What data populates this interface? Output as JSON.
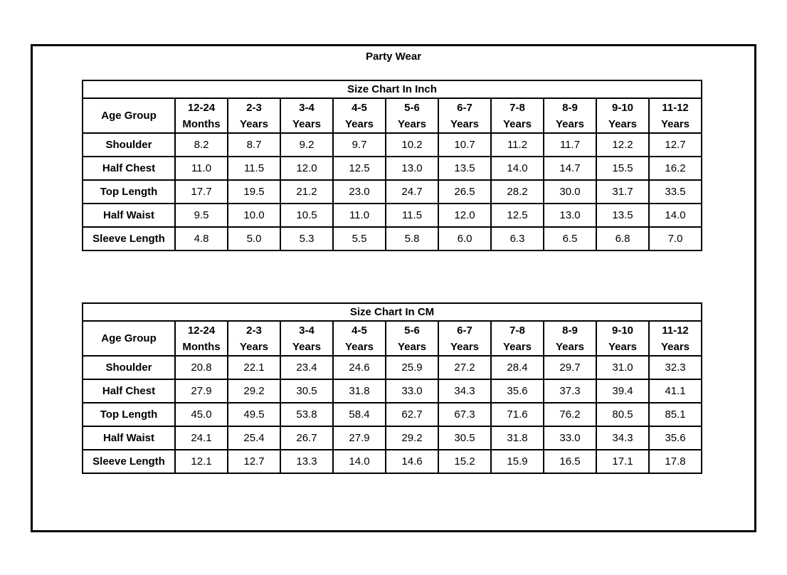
{
  "page_title": "Party Wear",
  "colors": {
    "border": "#000000",
    "text": "#000000",
    "background": "#ffffff"
  },
  "tables": [
    {
      "title": "Size Chart In Inch",
      "corner_label": "Age Group",
      "columns": [
        [
          "12-24",
          "Months"
        ],
        [
          "2-3",
          "Years"
        ],
        [
          "3-4",
          "Years"
        ],
        [
          "4-5",
          "Years"
        ],
        [
          "5-6",
          "Years"
        ],
        [
          "6-7",
          "Years"
        ],
        [
          "7-8",
          "Years"
        ],
        [
          "8-9",
          "Years"
        ],
        [
          "9-10",
          "Years"
        ],
        [
          "11-12",
          "Years"
        ]
      ],
      "rows": [
        {
          "label": "Shoulder",
          "values": [
            "8.2",
            "8.7",
            "9.2",
            "9.7",
            "10.2",
            "10.7",
            "11.2",
            "11.7",
            "12.2",
            "12.7"
          ]
        },
        {
          "label": "Half Chest",
          "values": [
            "11.0",
            "11.5",
            "12.0",
            "12.5",
            "13.0",
            "13.5",
            "14.0",
            "14.7",
            "15.5",
            "16.2"
          ]
        },
        {
          "label": "Top Length",
          "values": [
            "17.7",
            "19.5",
            "21.2",
            "23.0",
            "24.7",
            "26.5",
            "28.2",
            "30.0",
            "31.7",
            "33.5"
          ]
        },
        {
          "label": "Half Waist",
          "values": [
            "9.5",
            "10.0",
            "10.5",
            "11.0",
            "11.5",
            "12.0",
            "12.5",
            "13.0",
            "13.5",
            "14.0"
          ]
        },
        {
          "label": "Sleeve Length",
          "values": [
            "4.8",
            "5.0",
            "5.3",
            "5.5",
            "5.8",
            "6.0",
            "6.3",
            "6.5",
            "6.8",
            "7.0"
          ]
        }
      ]
    },
    {
      "title": "Size Chart In CM",
      "corner_label": "Age Group",
      "columns": [
        [
          "12-24",
          "Months"
        ],
        [
          "2-3",
          "Years"
        ],
        [
          "3-4",
          "Years"
        ],
        [
          "4-5",
          "Years"
        ],
        [
          "5-6",
          "Years"
        ],
        [
          "6-7",
          "Years"
        ],
        [
          "7-8",
          "Years"
        ],
        [
          "8-9",
          "Years"
        ],
        [
          "9-10",
          "Years"
        ],
        [
          "11-12",
          "Years"
        ]
      ],
      "rows": [
        {
          "label": "Shoulder",
          "values": [
            "20.8",
            "22.1",
            "23.4",
            "24.6",
            "25.9",
            "27.2",
            "28.4",
            "29.7",
            "31.0",
            "32.3"
          ]
        },
        {
          "label": "Half Chest",
          "values": [
            "27.9",
            "29.2",
            "30.5",
            "31.8",
            "33.0",
            "34.3",
            "35.6",
            "37.3",
            "39.4",
            "41.1"
          ]
        },
        {
          "label": "Top Length",
          "values": [
            "45.0",
            "49.5",
            "53.8",
            "58.4",
            "62.7",
            "67.3",
            "71.6",
            "76.2",
            "80.5",
            "85.1"
          ]
        },
        {
          "label": "Half Waist",
          "values": [
            "24.1",
            "25.4",
            "26.7",
            "27.9",
            "29.2",
            "30.5",
            "31.8",
            "33.0",
            "34.3",
            "35.6"
          ]
        },
        {
          "label": "Sleeve Length",
          "values": [
            "12.1",
            "12.7",
            "13.3",
            "14.0",
            "14.6",
            "15.2",
            "15.9",
            "16.5",
            "17.1",
            "17.8"
          ]
        }
      ]
    }
  ]
}
